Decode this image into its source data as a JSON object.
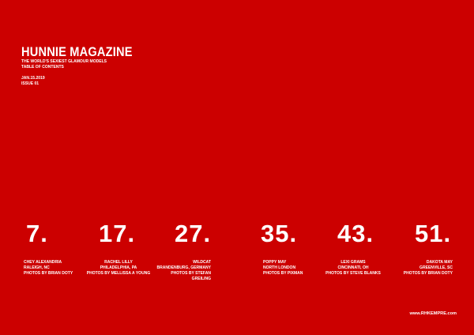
{
  "header": {
    "title": "HUNNIE MAGAZINE",
    "tagline": "THE WORLD'S SEXIEST GLAMOUR MODELS",
    "section": "TABLE OF CONTENTS",
    "date": "JAN.15.2019",
    "issue": "ISSUE 01"
  },
  "entries": [
    {
      "page": "7.",
      "name": "CHEY ALEXANDRIA",
      "location": "RALEIGH, NC",
      "credit": "PHOTOS BY BRIAN DOTY",
      "credit2": ""
    },
    {
      "page": "17.",
      "name": "RACHEL LILLY",
      "location": "PHILADELPHIA, PA",
      "credit": "PHOTOS BY MELLISSA A YOUNG",
      "credit2": ""
    },
    {
      "page": "27.",
      "name": "WILDCAT",
      "location": "BRANDENBURG, GERMANY",
      "credit": "PHOTOS BY STEFAN",
      "credit2": "GREILING"
    },
    {
      "page": "35.",
      "name": "POPPY MAY",
      "location": "NORTH LONDON",
      "credit": "PHOTOS BY PIXMAN",
      "credit2": ""
    },
    {
      "page": "43.",
      "name": "LEXI GRAMS",
      "location": "CINCINNATI, OH",
      "credit": "PHOTOS BY STEVE BLANKS",
      "credit2": ""
    },
    {
      "page": "51.",
      "name": "DAKOTA MAY",
      "location": "GREENVILLE, SC",
      "credit": "PHOTOS BY BRIAN DOTY",
      "credit2": ""
    }
  ],
  "footer": {
    "website": "www.RHKEMPRE.com"
  },
  "colors": {
    "background": "#cc0000",
    "text": "#ffffff"
  }
}
